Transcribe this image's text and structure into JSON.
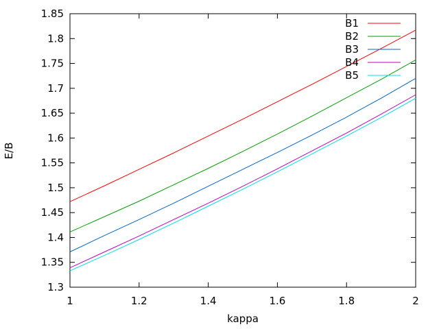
{
  "chart_data": {
    "type": "line",
    "title": "",
    "xlabel": "kappa",
    "ylabel": "E/B",
    "xlim": [
      1,
      2
    ],
    "ylim": [
      1.3,
      1.85
    ],
    "x_ticks": [
      1,
      1.2,
      1.4,
      1.6,
      1.8,
      2
    ],
    "x_tick_labels": [
      "1",
      "1.2",
      "1.4",
      "1.6",
      "1.8",
      "2"
    ],
    "y_ticks": [
      1.3,
      1.35,
      1.4,
      1.45,
      1.5,
      1.55,
      1.6,
      1.65,
      1.7,
      1.75,
      1.8,
      1.85
    ],
    "y_tick_labels": [
      "1.3",
      "1.35",
      "1.4",
      "1.45",
      "1.5",
      "1.55",
      "1.6",
      "1.65",
      "1.7",
      "1.75",
      "1.8",
      "1.85"
    ],
    "grid": false,
    "legend_position": "top-right",
    "x": [
      1.0,
      1.1,
      1.2,
      1.3,
      1.4,
      1.5,
      1.6,
      1.7,
      1.8,
      1.9,
      2.0
    ],
    "series": [
      {
        "name": "B1",
        "color": "#ff0000",
        "values": [
          1.472,
          1.504,
          1.537,
          1.57,
          1.604,
          1.638,
          1.673,
          1.708,
          1.744,
          1.78,
          1.817
        ]
      },
      {
        "name": "B2",
        "color": "#00a000",
        "values": [
          1.411,
          1.442,
          1.473,
          1.506,
          1.539,
          1.573,
          1.608,
          1.644,
          1.681,
          1.718,
          1.757
        ]
      },
      {
        "name": "B3",
        "color": "#0066cc",
        "values": [
          1.371,
          1.404,
          1.436,
          1.469,
          1.503,
          1.537,
          1.571,
          1.606,
          1.642,
          1.68,
          1.72
        ]
      },
      {
        "name": "B4",
        "color": "#c000c0",
        "values": [
          1.339,
          1.371,
          1.403,
          1.436,
          1.469,
          1.503,
          1.538,
          1.574,
          1.61,
          1.648,
          1.687
        ]
      },
      {
        "name": "B5",
        "color": "#00e0e0",
        "values": [
          1.333,
          1.364,
          1.396,
          1.429,
          1.463,
          1.497,
          1.532,
          1.568,
          1.604,
          1.641,
          1.68
        ]
      }
    ]
  }
}
